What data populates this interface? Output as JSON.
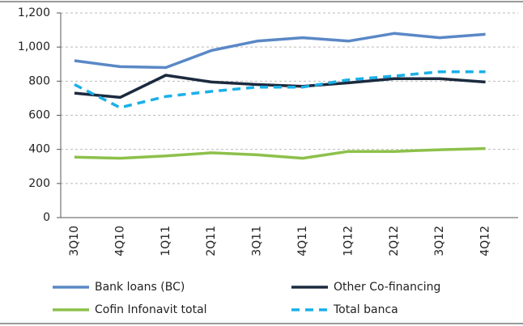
{
  "chart_data": {
    "type": "line",
    "categories": [
      "3Q10",
      "4Q10",
      "1Q11",
      "2Q11",
      "3Q11",
      "4Q11",
      "1Q12",
      "2Q12",
      "3Q12",
      "4Q12"
    ],
    "series": [
      {
        "name": "Bank loans (BC)",
        "color": "#5a88c6",
        "values": [
          920,
          885,
          880,
          980,
          1035,
          1055,
          1035,
          1080,
          1055,
          1075
        ]
      },
      {
        "name": "Other Co-financing",
        "color": "#1b2a3e",
        "values": [
          730,
          705,
          835,
          795,
          780,
          770,
          790,
          815,
          815,
          795
        ]
      },
      {
        "name": "Cofin Infonavit total",
        "color": "#8dc04a",
        "values": [
          355,
          348,
          362,
          380,
          368,
          348,
          388,
          388,
          398,
          405
        ]
      },
      {
        "name": "Total banca",
        "color": "#1ab0e8",
        "dashed": true,
        "values": [
          780,
          645,
          710,
          740,
          765,
          765,
          808,
          830,
          855,
          855
        ]
      }
    ],
    "ylim": [
      0,
      1200
    ],
    "yticks": [
      0,
      200,
      400,
      600,
      800,
      {
        "value": 1000,
        "label": "1,000"
      },
      {
        "value": 1200,
        "label": "1,200"
      }
    ],
    "grid": true
  }
}
